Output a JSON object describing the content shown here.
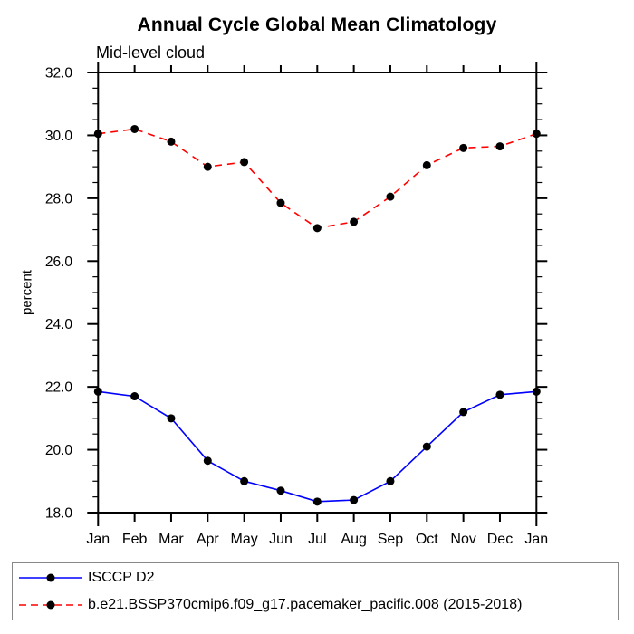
{
  "page": {
    "background": "#ffffff"
  },
  "chart_data": {
    "type": "line",
    "title": "Annual Cycle Global Mean Climatology",
    "subtitle": "Mid-level cloud",
    "ylabel": "percent",
    "xlabel": "",
    "categories": [
      "Jan",
      "Feb",
      "Mar",
      "Apr",
      "May",
      "Jun",
      "Jul",
      "Aug",
      "Sep",
      "Oct",
      "Nov",
      "Dec",
      "Jan"
    ],
    "ylim": [
      18.0,
      32.0
    ],
    "ytick_step": 2.0,
    "yminor_step": 0.5,
    "ytick_labels": [
      "18.0",
      "20.0",
      "22.0",
      "24.0",
      "26.0",
      "28.0",
      "30.0",
      "32.0"
    ],
    "grid": false,
    "legend_position": "bottom-box",
    "legend_border_color": "#888888",
    "axis_color": "#000000",
    "marker": {
      "shape": "circle",
      "color": "#000000",
      "radius": 4.5
    },
    "series": [
      {
        "name": "ISCCP D2",
        "color": "#0000ff",
        "line_style": "solid",
        "values": [
          21.85,
          21.7,
          21.0,
          19.65,
          19.0,
          18.7,
          18.35,
          18.4,
          19.0,
          20.1,
          21.2,
          21.75,
          21.85
        ]
      },
      {
        "name": "b.e21.BSSP370cmip6.f09_g17.pacemaker_pacific.008 (2015-2018)",
        "color": "#ff0000",
        "line_style": "dashed",
        "values": [
          30.05,
          30.2,
          29.8,
          29.0,
          29.15,
          27.85,
          27.05,
          27.25,
          28.05,
          29.05,
          29.6,
          29.65,
          30.05
        ]
      }
    ]
  }
}
